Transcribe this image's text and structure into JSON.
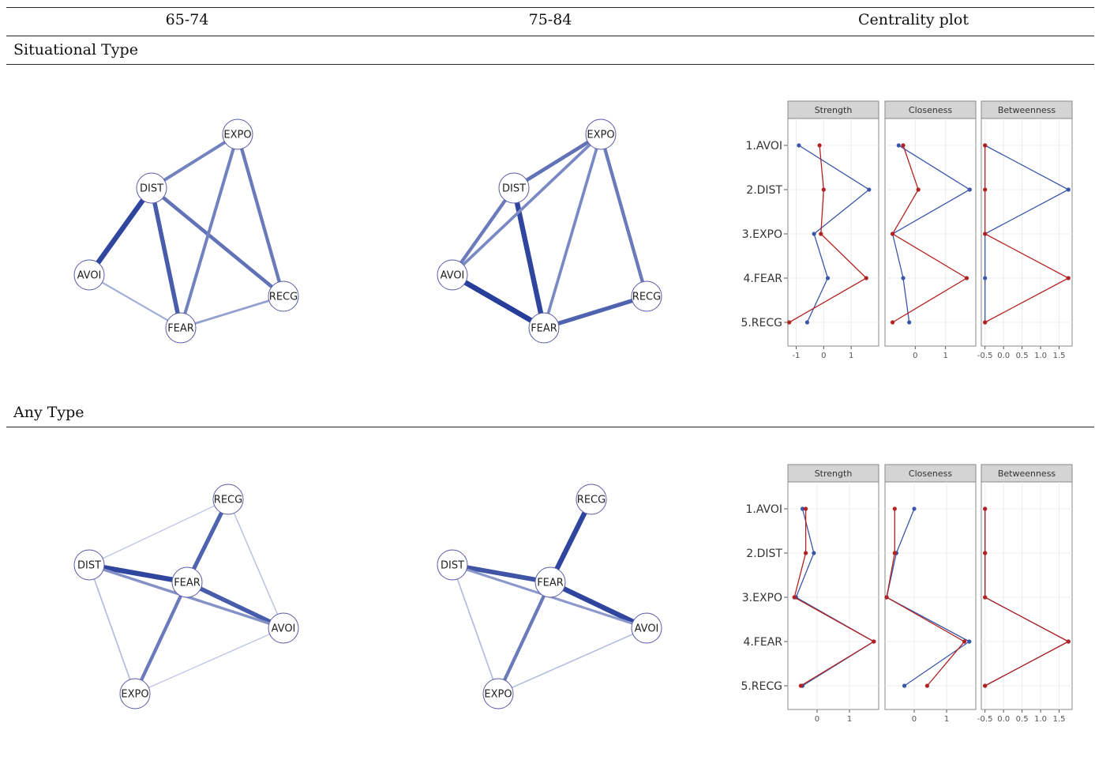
{
  "header": {
    "col1": "65-74",
    "col2": "75-84",
    "col3": "Centrality plot"
  },
  "rows": [
    {
      "label": "Situational Type",
      "networks": [
        {
          "nodes": [
            {
              "id": "EXPO",
              "label": "EXPO"
            },
            {
              "id": "DIST",
              "label": "DIST"
            },
            {
              "id": "AVOI",
              "label": "AVOI"
            },
            {
              "id": "RECG",
              "label": "RECG"
            },
            {
              "id": "FEAR",
              "label": "FEAR"
            }
          ],
          "edges": [
            {
              "from": "DIST",
              "to": "AVOI",
              "strength": 0.9
            },
            {
              "from": "DIST",
              "to": "FEAR",
              "strength": 0.75
            },
            {
              "from": "DIST",
              "to": "EXPO",
              "strength": 0.5
            },
            {
              "from": "DIST",
              "to": "RECG",
              "strength": 0.6
            },
            {
              "from": "EXPO",
              "to": "FEAR",
              "strength": 0.5
            },
            {
              "from": "EXPO",
              "to": "RECG",
              "strength": 0.55
            },
            {
              "from": "AVOI",
              "to": "FEAR",
              "strength": 0.2
            },
            {
              "from": "FEAR",
              "to": "RECG",
              "strength": 0.3
            }
          ]
        },
        {
          "nodes": [
            {
              "id": "EXPO",
              "label": "EXPO"
            },
            {
              "id": "DIST",
              "label": "DIST"
            },
            {
              "id": "AVOI",
              "label": "AVOI"
            },
            {
              "id": "RECG",
              "label": "RECG"
            },
            {
              "id": "FEAR",
              "label": "FEAR"
            }
          ],
          "edges": [
            {
              "from": "DIST",
              "to": "FEAR",
              "strength": 0.9
            },
            {
              "from": "AVOI",
              "to": "FEAR",
              "strength": 0.95
            },
            {
              "from": "DIST",
              "to": "EXPO",
              "strength": 0.6
            },
            {
              "from": "DIST",
              "to": "AVOI",
              "strength": 0.55
            },
            {
              "from": "AVOI",
              "to": "EXPO",
              "strength": 0.45
            },
            {
              "from": "EXPO",
              "to": "RECG",
              "strength": 0.55
            },
            {
              "from": "EXPO",
              "to": "FEAR",
              "strength": 0.45
            },
            {
              "from": "FEAR",
              "to": "RECG",
              "strength": 0.7
            }
          ]
        }
      ],
      "centrality": {
        "panels": [
          "Strength",
          "Closeness",
          "Betweenness"
        ],
        "items": [
          "1.AVOI",
          "2.DIST",
          "3.EXPO",
          "4.FEAR",
          "5.RECG"
        ],
        "x_ticks": [
          [
            "-1",
            "0",
            "1"
          ],
          [
            "0",
            "1"
          ],
          [
            "-0.5",
            "0.0",
            "0.5",
            "1.0",
            "1.5"
          ]
        ],
        "x_range": [
          [
            -1.3,
            2.0
          ],
          [
            -1.0,
            2.0
          ],
          [
            -0.6,
            1.85
          ]
        ],
        "series": [
          {
            "name": "",
            "color": "#3a56a8",
            "values": [
              [
                -0.9,
                1.65,
                -0.35,
                0.15,
                -0.6
              ],
              [
                -0.55,
                1.8,
                -0.75,
                -0.4,
                -0.2
              ],
              [
                -0.5,
                1.75,
                -0.5,
                -0.5,
                -0.5
              ]
            ]
          },
          {
            "name": "",
            "color": "#b22222",
            "values": [
              [
                -0.15,
                0.0,
                -0.1,
                1.55,
                -1.25
              ],
              [
                -0.4,
                0.1,
                -0.75,
                1.7,
                -0.75
              ],
              [
                -0.5,
                -0.5,
                -0.5,
                1.75,
                -0.5
              ]
            ]
          }
        ]
      }
    },
    {
      "label": "Any Type",
      "networks": [
        {
          "nodes": [
            {
              "id": "RECG",
              "label": "RECG"
            },
            {
              "id": "DIST",
              "label": "DIST"
            },
            {
              "id": "FEAR",
              "label": "FEAR"
            },
            {
              "id": "AVOI",
              "label": "AVOI"
            },
            {
              "id": "EXPO",
              "label": "EXPO"
            }
          ],
          "edges": [
            {
              "from": "DIST",
              "to": "FEAR",
              "strength": 0.9
            },
            {
              "from": "FEAR",
              "to": "AVOI",
              "strength": 0.75
            },
            {
              "from": "FEAR",
              "to": "RECG",
              "strength": 0.7
            },
            {
              "from": "FEAR",
              "to": "EXPO",
              "strength": 0.55
            },
            {
              "from": "DIST",
              "to": "AVOI",
              "strength": 0.4
            },
            {
              "from": "DIST",
              "to": "EXPO",
              "strength": 0.12
            },
            {
              "from": "DIST",
              "to": "RECG",
              "strength": 0.05
            },
            {
              "from": "RECG",
              "to": "AVOI",
              "strength": 0.08
            },
            {
              "from": "EXPO",
              "to": "AVOI",
              "strength": 0.05
            }
          ]
        },
        {
          "nodes": [
            {
              "id": "RECG",
              "label": "RECG"
            },
            {
              "id": "DIST",
              "label": "DIST"
            },
            {
              "id": "FEAR",
              "label": "FEAR"
            },
            {
              "id": "AVOI",
              "label": "AVOI"
            },
            {
              "id": "EXPO",
              "label": "EXPO"
            }
          ],
          "edges": [
            {
              "from": "FEAR",
              "to": "RECG",
              "strength": 0.9
            },
            {
              "from": "FEAR",
              "to": "AVOI",
              "strength": 0.9
            },
            {
              "from": "DIST",
              "to": "FEAR",
              "strength": 0.8
            },
            {
              "from": "FEAR",
              "to": "EXPO",
              "strength": 0.55
            },
            {
              "from": "DIST",
              "to": "AVOI",
              "strength": 0.35
            },
            {
              "from": "DIST",
              "to": "EXPO",
              "strength": 0.12
            },
            {
              "from": "EXPO",
              "to": "AVOI",
              "strength": 0.1
            }
          ]
        }
      ],
      "centrality": {
        "panels": [
          "Strength",
          "Closeness",
          "Betweenness"
        ],
        "items": [
          "1.AVOI",
          "2.DIST",
          "3.EXPO",
          "4.FEAR",
          "5.RECG"
        ],
        "x_ticks": [
          [
            "0",
            "1"
          ],
          [
            "0",
            "1"
          ],
          [
            "-0.5",
            "0.0",
            "0.5",
            "1.0",
            "1.5"
          ]
        ],
        "x_range": [
          [
            -0.9,
            1.9
          ],
          [
            -0.9,
            1.9
          ],
          [
            -0.6,
            1.85
          ]
        ],
        "series": [
          {
            "name": "",
            "color": "#3a56a8",
            "values": [
              [
                -0.45,
                -0.1,
                -0.65,
                1.75,
                -0.45
              ],
              [
                0.0,
                -0.55,
                -0.85,
                1.7,
                -0.3
              ],
              [
                -0.5,
                -0.5,
                -0.5,
                1.75,
                -0.5
              ]
            ]
          },
          {
            "name": "",
            "color": "#b22222",
            "values": [
              [
                -0.35,
                -0.35,
                -0.7,
                1.75,
                -0.5
              ],
              [
                -0.6,
                -0.6,
                -0.85,
                1.55,
                0.4
              ],
              [
                -0.5,
                -0.5,
                -0.5,
                1.75,
                -0.5
              ]
            ]
          }
        ]
      }
    }
  ]
}
